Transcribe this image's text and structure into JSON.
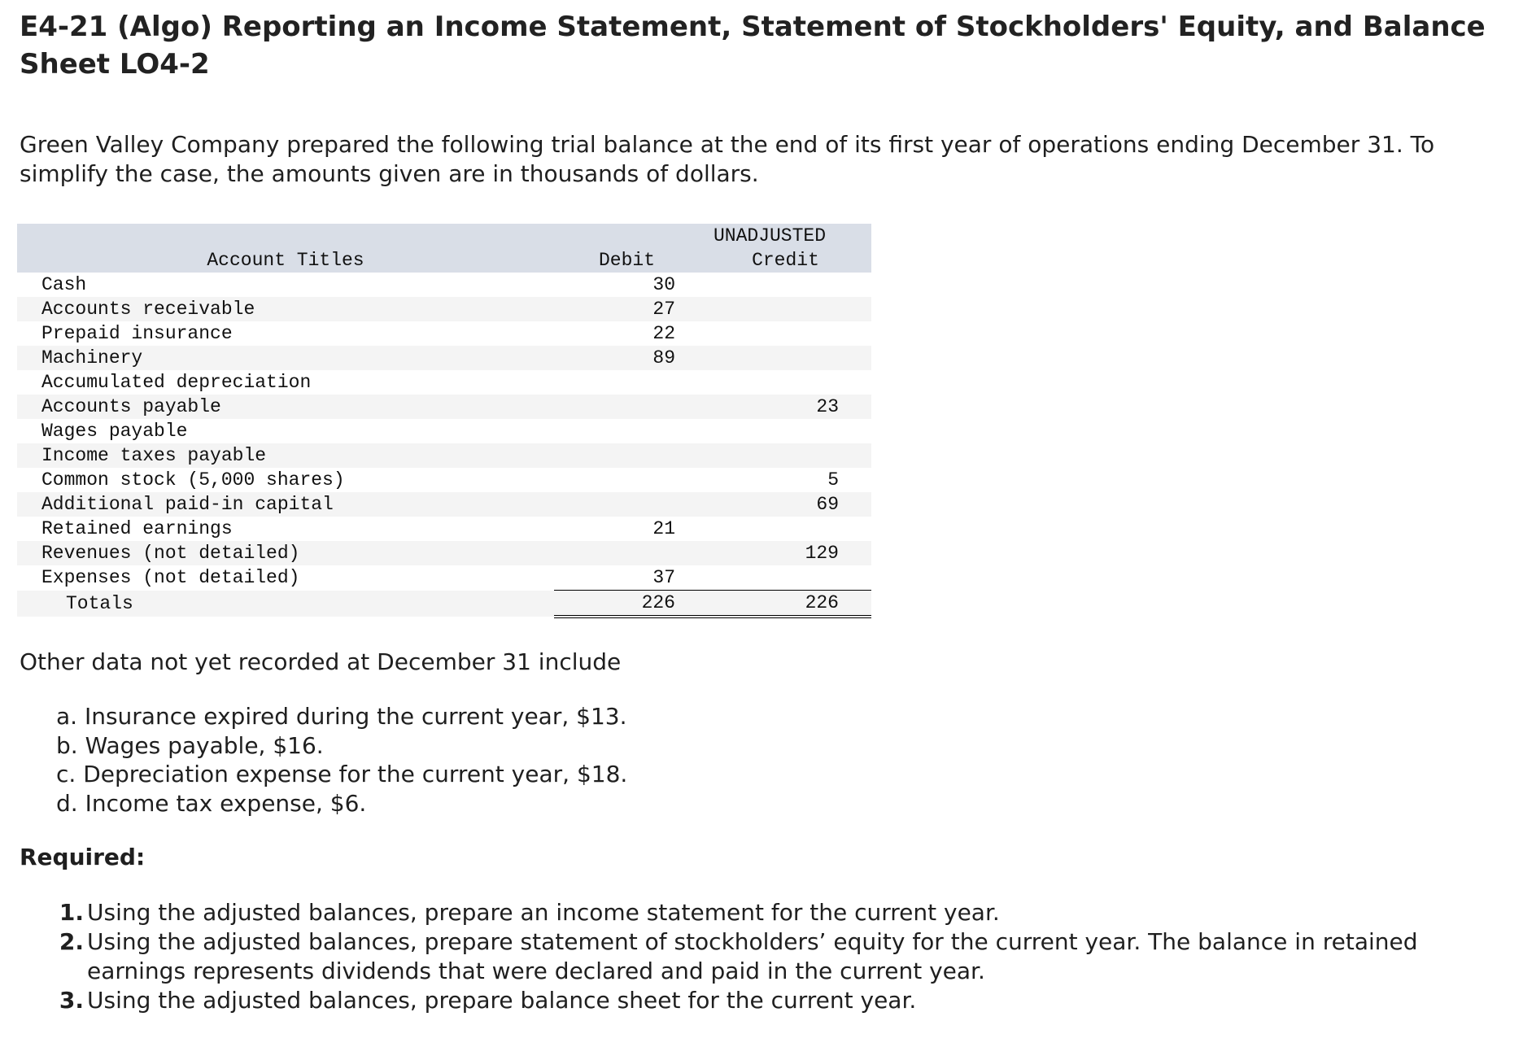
{
  "header": {
    "title": "E4-21 (Algo) Reporting an Income Statement, Statement of Stockholders' Equity, and Balance Sheet LO4-2"
  },
  "intro": "Green Valley Company prepared the following trial balance at the end of its first year of operations ending December 31. To simplify the case, the amounts given are in thousands of dollars.",
  "table": {
    "group_header": "UNADJUSTED",
    "columns": [
      "Account Titles",
      "Debit",
      "Credit"
    ],
    "rows": [
      [
        "Cash",
        30,
        null
      ],
      [
        "Accounts receivable",
        27,
        null
      ],
      [
        "Prepaid insurance",
        22,
        null
      ],
      [
        "Machinery",
        89,
        null
      ],
      [
        "Accumulated depreciation",
        null,
        null
      ],
      [
        "Accounts payable",
        null,
        23
      ],
      [
        "Wages payable",
        null,
        null
      ],
      [
        "Income taxes payable",
        null,
        null
      ],
      [
        "Common stock (5,000 shares)",
        null,
        5
      ],
      [
        "Additional paid-in capital",
        null,
        69
      ],
      [
        "Retained earnings",
        21,
        null
      ],
      [
        "Revenues (not detailed)",
        null,
        129
      ],
      [
        "Expenses (not detailed)",
        37,
        null
      ]
    ],
    "totals": [
      "Totals",
      226,
      226
    ]
  },
  "other_data": {
    "heading": "Other data not yet recorded at December 31 include",
    "items": [
      "a. Insurance expired during the current year, $13.",
      "b. Wages payable, $16.",
      "c. Depreciation expense for the current year, $18.",
      "d. Income tax expense, $6."
    ]
  },
  "required": {
    "heading": "Required:",
    "items": [
      {
        "number": "1.",
        "text": "Using the adjusted balances, prepare an income statement for the current year."
      },
      {
        "number": "2.",
        "text": "Using the adjusted balances, prepare statement of stockholders’ equity for the current year. The balance in retained earnings represents dividends that were declared and paid in the current year."
      },
      {
        "number": "3.",
        "text": "Using the adjusted balances, prepare balance sheet for the current year."
      }
    ]
  }
}
